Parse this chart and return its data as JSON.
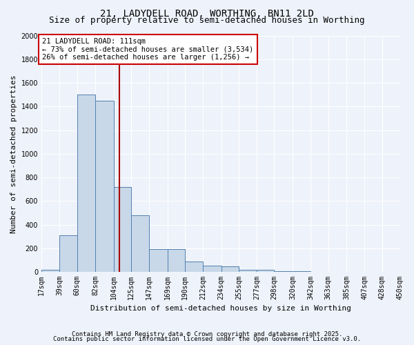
{
  "title_line1": "21, LADYDELL ROAD, WORTHING, BN11 2LD",
  "title_line2": "Size of property relative to semi-detached houses in Worthing",
  "xlabel": "Distribution of semi-detached houses by size in Worthing",
  "ylabel": "Number of semi-detached properties",
  "bin_edges": [
    17,
    39,
    60,
    82,
    104,
    125,
    147,
    169,
    190,
    212,
    234,
    255,
    277,
    298,
    320,
    342,
    363,
    385,
    407,
    428,
    450
  ],
  "bar_heights": [
    20,
    310,
    1500,
    1450,
    720,
    480,
    195,
    195,
    90,
    50,
    45,
    20,
    20,
    5,
    5,
    2,
    0,
    0,
    0,
    0
  ],
  "bar_color": "#c8d8e8",
  "bar_edge_color": "#5080b0",
  "vline_x": 111,
  "vline_color": "#aa0000",
  "ylim": [
    0,
    2000
  ],
  "yticks": [
    0,
    200,
    400,
    600,
    800,
    1000,
    1200,
    1400,
    1600,
    1800,
    2000
  ],
  "annotation_title": "21 LADYDELL ROAD: 111sqm",
  "annotation_line1": "← 73% of semi-detached houses are smaller (3,534)",
  "annotation_line2": "26% of semi-detached houses are larger (1,256) →",
  "annotation_box_color": "#ffffff",
  "annotation_box_edge_color": "#cc0000",
  "footnote1": "Contains HM Land Registry data © Crown copyright and database right 2025.",
  "footnote2": "Contains public sector information licensed under the Open Government Licence v3.0.",
  "background_color": "#eef2fa",
  "grid_color": "#ffffff",
  "title_fontsize": 10,
  "subtitle_fontsize": 9,
  "axis_label_fontsize": 8,
  "tick_fontsize": 7,
  "annotation_fontsize": 7.5,
  "footnote_fontsize": 6.5
}
